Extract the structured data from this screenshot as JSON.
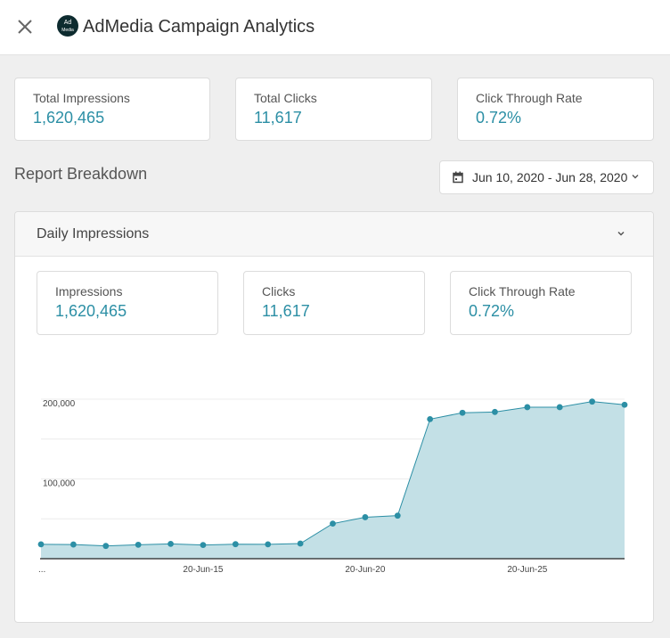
{
  "header": {
    "title": "AdMedia Campaign Analytics",
    "logo_text_1": "Ad",
    "logo_text_2": "Media"
  },
  "summary": [
    {
      "label": "Total Impressions",
      "value": "1,620,465"
    },
    {
      "label": "Total Clicks",
      "value": "11,617"
    },
    {
      "label": "Click Through Rate",
      "value": "0.72%"
    }
  ],
  "report": {
    "title": "Report Breakdown",
    "date_range": "Jun 10, 2020 - Jun 28, 2020"
  },
  "panel": {
    "title": "Daily Impressions",
    "stats": [
      {
        "label": "Impressions",
        "value": "1,620,465"
      },
      {
        "label": "Clicks",
        "value": "11,617"
      },
      {
        "label": "Click Through Rate",
        "value": "0.72%"
      }
    ]
  },
  "colors": {
    "accent": "#2c8fa5",
    "area_fill": "#c3e0e6"
  },
  "chart_data": {
    "type": "area",
    "x": [
      "20-Jun-10",
      "20-Jun-11",
      "20-Jun-12",
      "20-Jun-13",
      "20-Jun-14",
      "20-Jun-15",
      "20-Jun-16",
      "20-Jun-17",
      "20-Jun-18",
      "20-Jun-19",
      "20-Jun-20",
      "20-Jun-21",
      "20-Jun-22",
      "20-Jun-23",
      "20-Jun-24",
      "20-Jun-25",
      "20-Jun-26",
      "20-Jun-27",
      "20-Jun-28"
    ],
    "values": [
      18000,
      17800,
      16000,
      17500,
      18600,
      17200,
      18200,
      18000,
      19000,
      44000,
      52000,
      54000,
      175000,
      183000,
      184000,
      190000,
      190000,
      197000,
      193000
    ],
    "x_tick_labels": [
      "...",
      "20-Jun-15",
      "20-Jun-20",
      "20-Jun-25"
    ],
    "x_tick_indices": [
      0,
      5,
      10,
      15
    ],
    "y_tick_labels": [
      "100,000",
      "200,000"
    ],
    "y_tick_values": [
      100000,
      200000
    ],
    "ylim": [
      0,
      200000
    ],
    "grid": true
  }
}
